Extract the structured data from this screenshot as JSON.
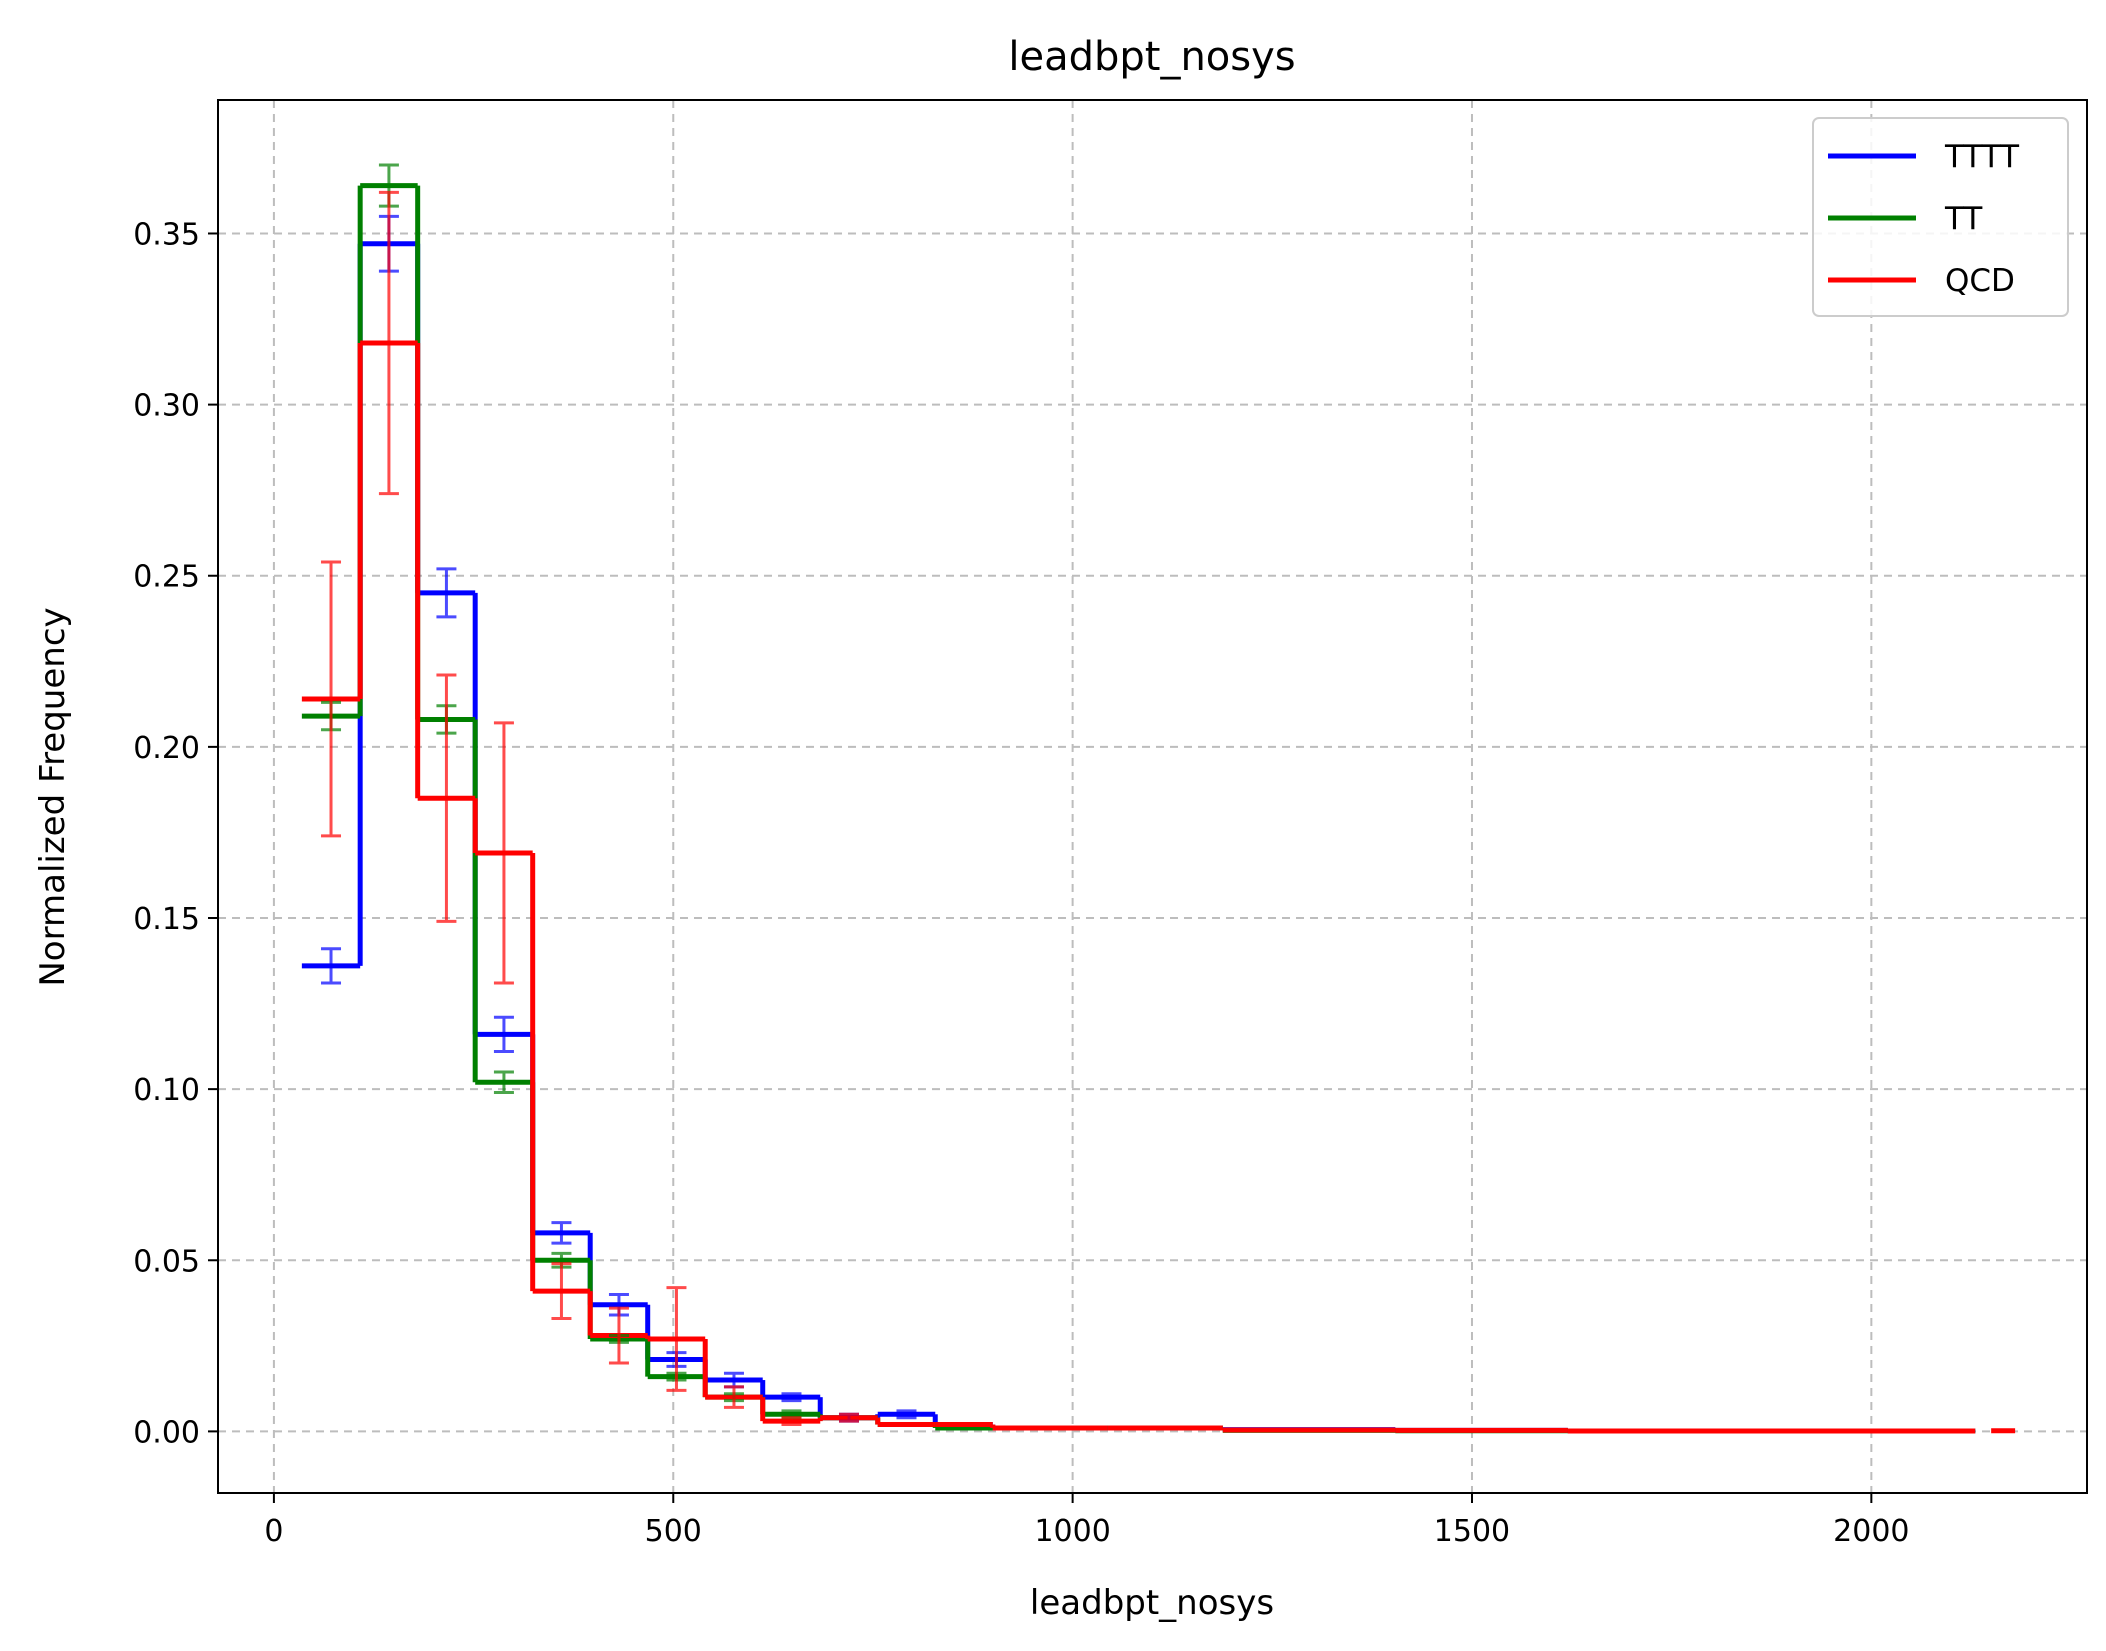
{
  "chart_data": {
    "type": "histogram",
    "title": "leadbpt_nosys",
    "xlabel": "leadbpt_nosys",
    "ylabel": "Normalized Frequency",
    "xlim": [
      -70,
      2270
    ],
    "ylim": [
      -0.018,
      0.389
    ],
    "x_ticks": [
      "0",
      "500",
      "1000",
      "1500",
      "2000"
    ],
    "y_ticks": [
      "0.00",
      "0.05",
      "0.10",
      "0.15",
      "0.20",
      "0.25",
      "0.30",
      "0.35"
    ],
    "x_tick_values": [
      0,
      500,
      1000,
      1500,
      2000
    ],
    "y_tick_values": [
      0,
      0.05,
      0.1,
      0.15,
      0.2,
      0.25,
      0.3,
      0.35
    ],
    "grid": true,
    "legend_position": "top-right",
    "series": [
      {
        "name": "TTTT",
        "color": "#0000ff",
        "bins": [
          {
            "x0": 35,
            "x1": 108,
            "y": 0.136,
            "err": 0.005
          },
          {
            "x0": 108,
            "x1": 180,
            "y": 0.347,
            "err": 0.008
          },
          {
            "x0": 180,
            "x1": 252,
            "y": 0.245,
            "err": 0.007
          },
          {
            "x0": 252,
            "x1": 324,
            "y": 0.116,
            "err": 0.005
          },
          {
            "x0": 324,
            "x1": 396,
            "y": 0.058,
            "err": 0.003
          },
          {
            "x0": 396,
            "x1": 468,
            "y": 0.037,
            "err": 0.003
          },
          {
            "x0": 468,
            "x1": 540,
            "y": 0.021,
            "err": 0.002
          },
          {
            "x0": 540,
            "x1": 612,
            "y": 0.015,
            "err": 0.002
          },
          {
            "x0": 612,
            "x1": 684,
            "y": 0.01,
            "err": 0.001
          },
          {
            "x0": 684,
            "x1": 756,
            "y": 0.004,
            "err": 0.001
          },
          {
            "x0": 756,
            "x1": 828,
            "y": 0.005,
            "err": 0.001
          },
          {
            "x0": 828,
            "x1": 900,
            "y": 0.002,
            "err": 0.0
          },
          {
            "x0": 900,
            "x1": 1044,
            "y": 0.001,
            "err": 0.0
          },
          {
            "x0": 1044,
            "x1": 1188,
            "y": 0.001,
            "err": 0.0
          },
          {
            "x0": 1188,
            "x1": 1404,
            "y": 0.0005,
            "err": 0.0
          },
          {
            "x0": 1404,
            "x1": 1620,
            "y": 0.0003,
            "err": 0.0
          },
          {
            "x0": 1620,
            "x1": 2130,
            "y": 0.0001,
            "err": 0.0
          }
        ]
      },
      {
        "name": "TT",
        "color": "#008000",
        "bins": [
          {
            "x0": 35,
            "x1": 108,
            "y": 0.209,
            "err": 0.004
          },
          {
            "x0": 108,
            "x1": 180,
            "y": 0.364,
            "err": 0.006
          },
          {
            "x0": 180,
            "x1": 252,
            "y": 0.208,
            "err": 0.004
          },
          {
            "x0": 252,
            "x1": 324,
            "y": 0.102,
            "err": 0.003
          },
          {
            "x0": 324,
            "x1": 396,
            "y": 0.05,
            "err": 0.002
          },
          {
            "x0": 396,
            "x1": 468,
            "y": 0.027,
            "err": 0.001
          },
          {
            "x0": 468,
            "x1": 540,
            "y": 0.016,
            "err": 0.001
          },
          {
            "x0": 540,
            "x1": 612,
            "y": 0.01,
            "err": 0.001
          },
          {
            "x0": 612,
            "x1": 684,
            "y": 0.005,
            "err": 0.001
          },
          {
            "x0": 684,
            "x1": 756,
            "y": 0.004,
            "err": 0.0
          },
          {
            "x0": 756,
            "x1": 828,
            "y": 0.002,
            "err": 0.0
          },
          {
            "x0": 828,
            "x1": 900,
            "y": 0.001,
            "err": 0.0
          },
          {
            "x0": 900,
            "x1": 1044,
            "y": 0.001,
            "err": 0.0
          },
          {
            "x0": 1044,
            "x1": 1188,
            "y": 0.001,
            "err": 0.0
          },
          {
            "x0": 1188,
            "x1": 1404,
            "y": 0.0003,
            "err": 0.0
          },
          {
            "x0": 1404,
            "x1": 1620,
            "y": 0.0002,
            "err": 0.0
          },
          {
            "x0": 1620,
            "x1": 2130,
            "y": 0.0001,
            "err": 0.0
          }
        ]
      },
      {
        "name": "QCD",
        "color": "#ff0000",
        "bins": [
          {
            "x0": 35,
            "x1": 108,
            "y": 0.214,
            "err": 0.04
          },
          {
            "x0": 108,
            "x1": 180,
            "y": 0.318,
            "err": 0.044
          },
          {
            "x0": 180,
            "x1": 252,
            "y": 0.185,
            "err": 0.036
          },
          {
            "x0": 252,
            "x1": 324,
            "y": 0.169,
            "err": 0.038
          },
          {
            "x0": 324,
            "x1": 396,
            "y": 0.041,
            "err": 0.008
          },
          {
            "x0": 396,
            "x1": 468,
            "y": 0.028,
            "err": 0.008
          },
          {
            "x0": 468,
            "x1": 540,
            "y": 0.027,
            "err": 0.015
          },
          {
            "x0": 540,
            "x1": 612,
            "y": 0.01,
            "err": 0.003
          },
          {
            "x0": 612,
            "x1": 684,
            "y": 0.003,
            "err": 0.001
          },
          {
            "x0": 684,
            "x1": 756,
            "y": 0.004,
            "err": 0.001
          },
          {
            "x0": 756,
            "x1": 828,
            "y": 0.002,
            "err": 0.0
          },
          {
            "x0": 828,
            "x1": 900,
            "y": 0.002,
            "err": 0.0
          },
          {
            "x0": 900,
            "x1": 1044,
            "y": 0.001,
            "err": 0.0
          },
          {
            "x0": 1044,
            "x1": 1188,
            "y": 0.001,
            "err": 0.0
          },
          {
            "x0": 1188,
            "x1": 1404,
            "y": 0.0004,
            "err": 0.0
          },
          {
            "x0": 1404,
            "x1": 1620,
            "y": 0.0003,
            "err": 0.0
          },
          {
            "x0": 1620,
            "x1": 2130,
            "y": 0.0001,
            "err": 0.0
          },
          {
            "x0": 2150,
            "x1": 2180,
            "y": 0.0002,
            "err": 0.0
          }
        ]
      }
    ]
  }
}
